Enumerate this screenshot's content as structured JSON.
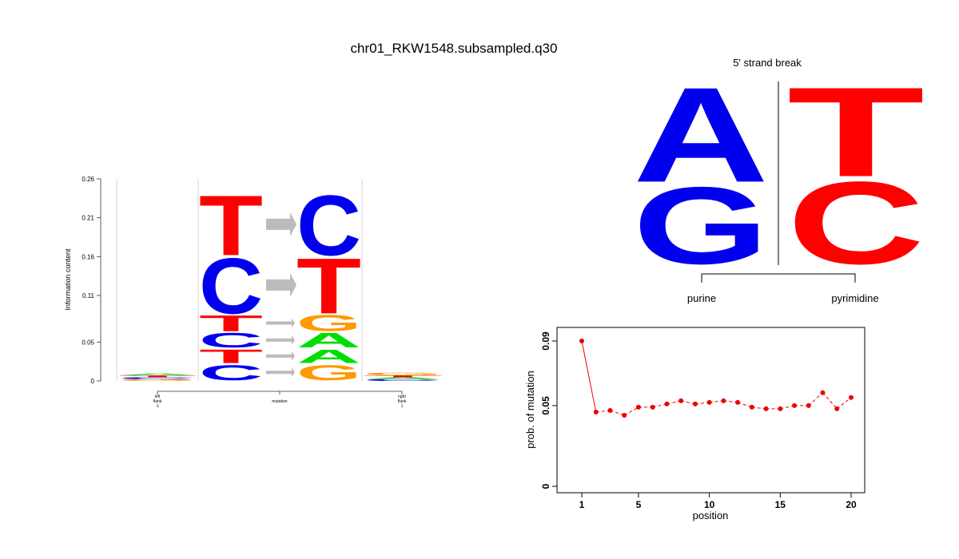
{
  "page": {
    "title": "chr01_RKW1548.subsampled.q30"
  },
  "colors": {
    "A": "#00dd00",
    "C": "#0000ee",
    "G": "#ff9900",
    "T": "#ff0000",
    "arrow": "#bbbbbb",
    "mutation_line": "#ee0000"
  },
  "chart_data": [
    {
      "type": "sequence-logo",
      "ylabel": "Information content",
      "ylim": [
        0,
        0.26
      ],
      "yticks": [
        "0",
        "0.05",
        "0.11",
        "0.16",
        "0.21",
        "0.26"
      ],
      "xticks": [
        {
          "lines": [
            "left",
            "flank",
            "-1"
          ]
        },
        {
          "lines": [
            "mutation"
          ]
        },
        {
          "lines": [
            "right",
            "flank",
            "1"
          ]
        }
      ],
      "left_flank": [
        {
          "letter": "G",
          "height": 0.002
        },
        {
          "letter": "C",
          "height": 0.002
        },
        {
          "letter": "T",
          "height": 0.002
        },
        {
          "letter": "A",
          "height": 0.002
        }
      ],
      "right_flank": [
        {
          "letter": "C",
          "height": 0.002
        },
        {
          "letter": "A",
          "height": 0.002
        },
        {
          "letter": "T",
          "height": 0.002
        },
        {
          "letter": "G",
          "height": 0.003
        }
      ],
      "mutations": [
        {
          "ref": "C",
          "alt": "G",
          "height": 0.022
        },
        {
          "ref": "T",
          "alt": "A",
          "height": 0.02
        },
        {
          "ref": "C",
          "alt": "A",
          "height": 0.021
        },
        {
          "ref": "T",
          "alt": "G",
          "height": 0.023
        },
        {
          "ref": "C",
          "alt": "T",
          "height": 0.075
        },
        {
          "ref": "T",
          "alt": "C",
          "height": 0.081
        }
      ]
    },
    {
      "type": "sequence-logo",
      "title": "5' strand break",
      "left": [
        {
          "letter": "G",
          "height": 0.45
        },
        {
          "letter": "A",
          "height": 0.55
        }
      ],
      "right": [
        {
          "letter": "C",
          "height": 0.48
        },
        {
          "letter": "T",
          "height": 0.52
        }
      ],
      "labels": [
        "purine",
        "pyrimidine"
      ]
    },
    {
      "type": "line",
      "xlabel": "position",
      "ylabel": "prob. of mutation",
      "xlim": [
        1,
        20
      ],
      "ylim": [
        0,
        0.09
      ],
      "xticks": [
        1,
        5,
        10,
        15,
        20
      ],
      "yticks": [
        "0",
        "0.05",
        "0.09"
      ],
      "x": [
        1,
        2,
        3,
        4,
        5,
        6,
        7,
        8,
        9,
        10,
        11,
        12,
        13,
        14,
        15,
        16,
        17,
        18,
        19,
        20
      ],
      "y": [
        0.09,
        0.046,
        0.047,
        0.044,
        0.049,
        0.049,
        0.051,
        0.053,
        0.051,
        0.052,
        0.053,
        0.052,
        0.049,
        0.048,
        0.048,
        0.05,
        0.05,
        0.058,
        0.048,
        0.055
      ]
    }
  ]
}
